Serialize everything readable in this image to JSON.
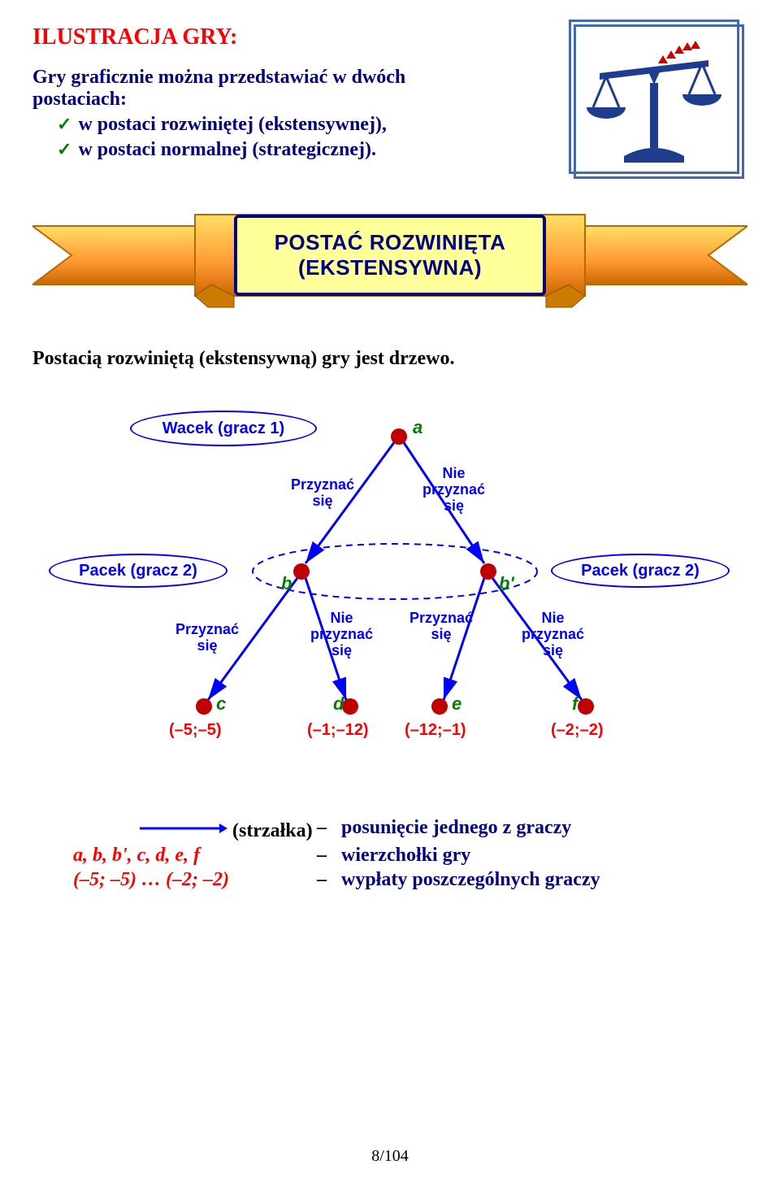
{
  "title": "ILUSTRACJA GRY:",
  "intro": "Gry graficznie można przedstawiać w dwóch postaciach:",
  "bullets": [
    "w postaci rozwiniętej (ekstensywnej),",
    "w postaci normalnej (strategicznej)."
  ],
  "banner": {
    "line1": "POSTAĆ ROZWINIĘTA",
    "line2": "(EKSTENSYWNA)"
  },
  "subtitle": "Postacią rozwiniętą (ekstensywną) gry jest drzewo.",
  "tree": {
    "player1": "Wacek (gracz 1)",
    "player2": "Pacek (gracz 2)",
    "root_label": "a",
    "edge_confess": "Przyznać się",
    "edge_deny_1": "Nie",
    "edge_deny_2": "przyznać",
    "edge_deny_3": "się",
    "nodes": {
      "b": "b",
      "bp": "b'",
      "c": "c",
      "d": "d",
      "e": "e",
      "f": "f"
    },
    "payoffs": {
      "c": "(–5;–5)",
      "d": "(–1;–12)",
      "e": "(–12;–1)",
      "f": "(–2;–2)"
    },
    "node_color": "#c00000",
    "edge_color": "#0000ff",
    "label_color": "#008000",
    "payoff_color": "#ff0000",
    "dash_color": "#0000ff"
  },
  "legend": {
    "rows": [
      {
        "left_type": "arrow",
        "right": "posunięcie jednego z graczy"
      },
      {
        "left_type": "nodes",
        "left": "a, b, b', c, d, e, f",
        "right": "wierzchołki gry"
      },
      {
        "left_type": "payoffs",
        "left": "(–5; –5) … (–2; –2)",
        "right": "wypłaty poszczególnych graczy"
      }
    ]
  },
  "page": "8/104",
  "colors": {
    "title": "#ff0000",
    "navy": "#000080",
    "check": "#008000",
    "banner_bg": "#ffff99",
    "banner_border": "#000080",
    "scales": "#1f3d8f"
  }
}
